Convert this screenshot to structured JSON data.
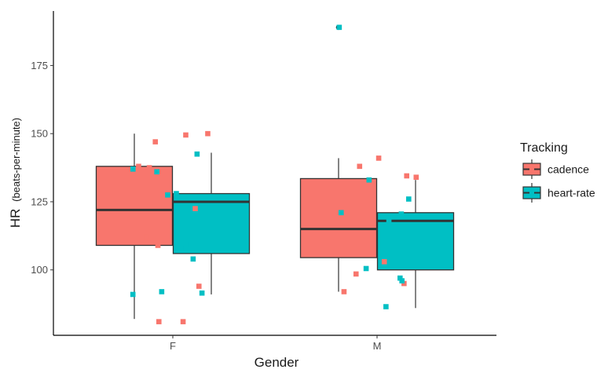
{
  "chart_data": {
    "type": "boxplot",
    "title": "",
    "xlabel": "Gender",
    "ylabel": {
      "main": "HR",
      "sub": "(beats-per-minute)"
    },
    "ylim": [
      76,
      195
    ],
    "yticks": [
      100,
      125,
      150,
      175
    ],
    "categories": [
      "F",
      "M"
    ],
    "grid": false,
    "legend": {
      "title": "Tracking",
      "position": "right"
    },
    "series": [
      {
        "name": "cadence",
        "color": "#F8766D",
        "boxes": [
          {
            "category": "F",
            "whisker_low": 82,
            "q1": 109,
            "median": 122,
            "q3": 138,
            "whisker_high": 150,
            "outliers": []
          },
          {
            "category": "M",
            "whisker_low": 92,
            "q1": 104.5,
            "median": 115,
            "q3": 133.5,
            "whisker_high": 141,
            "outliers": [
              189
            ]
          }
        ],
        "points": [
          {
            "category": "F",
            "y": [
              149.5,
              150,
              147,
              138,
              137.5,
              122.5,
              112,
              109,
              94,
              81,
              81
            ]
          },
          {
            "category": "M",
            "y": [
              134.5,
              134,
              141,
              138,
              125.5,
              111.5,
              103,
              98.5,
              95,
              92
            ]
          }
        ]
      },
      {
        "name": "heart-rate",
        "color": "#00BFC4",
        "boxes": [
          {
            "category": "F",
            "whisker_low": 91,
            "q1": 106,
            "median": 125,
            "q3": 128,
            "whisker_high": 143,
            "outliers": []
          },
          {
            "category": "M",
            "whisker_low": 86,
            "q1": 100,
            "median": 118,
            "q3": 121,
            "whisker_high": 133,
            "outliers": []
          }
        ],
        "points": [
          {
            "category": "F",
            "y": [
              142.5,
              137,
              136,
              127.5,
              128,
              108,
              109.5,
              104,
              92,
              91.5,
              91
            ]
          },
          {
            "category": "M",
            "y": [
              189,
              133,
              126,
              121,
              120.5,
              118,
              102,
              100.5,
              97,
              96,
              86.5
            ]
          }
        ]
      }
    ]
  }
}
